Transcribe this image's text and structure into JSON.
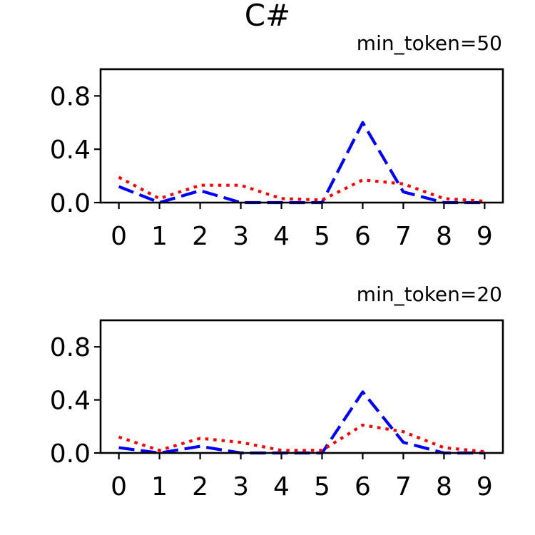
{
  "figure": {
    "title": "C#"
  },
  "colors": {
    "series_blue": "#0000ff",
    "series_red": "#ff0000",
    "axes": "#000000",
    "background": "#ffffff"
  },
  "chart_data": [
    {
      "type": "line",
      "title": "min_token=50",
      "xlabel": "",
      "ylabel": "",
      "x": [
        0,
        1,
        2,
        3,
        4,
        5,
        6,
        7,
        8,
        9
      ],
      "x_tick_labels": [
        "0",
        "1",
        "2",
        "3",
        "4",
        "5",
        "6",
        "7",
        "8",
        "9"
      ],
      "y_tick_labels": [
        "0.0",
        "0.4",
        "0.8"
      ],
      "y_ticks": [
        0.0,
        0.4,
        0.8
      ],
      "xlim": [
        -0.45,
        9.45
      ],
      "ylim": [
        0,
        1
      ],
      "grid": false,
      "legend": "none",
      "series": [
        {
          "color": "#0000ff",
          "style": "dashed",
          "values": [
            0.12,
            0.0,
            0.09,
            0.0,
            0.0,
            0.0,
            0.6,
            0.08,
            0.0,
            0.0
          ]
        },
        {
          "color": "#ff0000",
          "style": "dotted",
          "values": [
            0.19,
            0.03,
            0.13,
            0.13,
            0.03,
            0.02,
            0.17,
            0.14,
            0.03,
            0.01
          ]
        }
      ]
    },
    {
      "type": "line",
      "title": "min_token=20",
      "xlabel": "",
      "ylabel": "",
      "x": [
        0,
        1,
        2,
        3,
        4,
        5,
        6,
        7,
        8,
        9
      ],
      "x_tick_labels": [
        "0",
        "1",
        "2",
        "3",
        "4",
        "5",
        "6",
        "7",
        "8",
        "9"
      ],
      "y_tick_labels": [
        "0.0",
        "0.4",
        "0.8"
      ],
      "y_ticks": [
        0.0,
        0.4,
        0.8
      ],
      "xlim": [
        -0.45,
        9.45
      ],
      "ylim": [
        0,
        1
      ],
      "grid": false,
      "legend": "none",
      "series": [
        {
          "color": "#0000ff",
          "style": "dashed",
          "values": [
            0.04,
            0.0,
            0.05,
            0.0,
            0.0,
            0.0,
            0.46,
            0.08,
            0.0,
            0.0
          ]
        },
        {
          "color": "#ff0000",
          "style": "dotted",
          "values": [
            0.12,
            0.02,
            0.11,
            0.08,
            0.02,
            0.02,
            0.21,
            0.16,
            0.04,
            0.01
          ]
        }
      ]
    }
  ]
}
